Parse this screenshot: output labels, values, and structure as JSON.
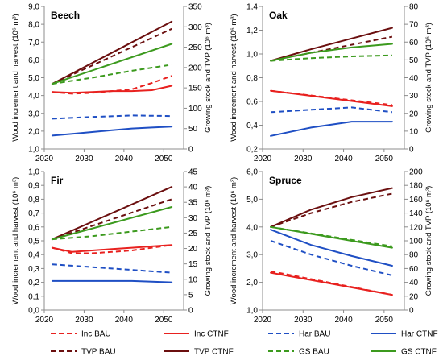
{
  "chart_data": [
    {
      "type": "line",
      "title": "Beech",
      "xlabel": "",
      "ylabel_left": "Wood increment and harvest (10⁶ m³)",
      "ylabel_right": "Growing stock and TVP (10⁶ m³)",
      "xlim": [
        2020,
        2055
      ],
      "x_ticks": [
        "2020",
        "2030",
        "2040",
        "2050"
      ],
      "ylim_left": [
        1.0,
        9.0
      ],
      "y_ticks_left": [
        "1,0",
        "2,0",
        "3,0",
        "4,0",
        "5,0",
        "6,0",
        "7,0",
        "8,0",
        "9,0"
      ],
      "ylim_right": [
        0,
        350
      ],
      "y_ticks_right": [
        "0",
        "50",
        "100",
        "150",
        "200",
        "250",
        "300",
        "350"
      ],
      "series": [
        {
          "name": "Inc BAU",
          "axis": "left",
          "x": [
            2022,
            2027,
            2032,
            2037,
            2042,
            2047,
            2052
          ],
          "values": [
            4.2,
            4.1,
            4.15,
            4.25,
            4.35,
            4.7,
            5.1
          ]
        },
        {
          "name": "Inc CTNF",
          "axis": "left",
          "x": [
            2022,
            2027,
            2032,
            2037,
            2042,
            2047,
            2052
          ],
          "values": [
            4.2,
            4.15,
            4.2,
            4.25,
            4.25,
            4.3,
            4.55
          ]
        },
        {
          "name": "Har BAU",
          "axis": "left",
          "x": [
            2022,
            2032,
            2042,
            2052
          ],
          "values": [
            2.7,
            2.8,
            2.88,
            2.85
          ]
        },
        {
          "name": "Har CTNF",
          "axis": "left",
          "x": [
            2022,
            2027,
            2032,
            2037,
            2042,
            2047,
            2052
          ],
          "values": [
            1.75,
            1.85,
            1.95,
            2.05,
            2.15,
            2.2,
            2.25
          ]
        },
        {
          "name": "TVP BAU",
          "axis": "right",
          "x": [
            2022,
            2052
          ],
          "values": [
            160,
            295
          ]
        },
        {
          "name": "TVP CTNF",
          "axis": "right",
          "x": [
            2022,
            2052
          ],
          "values": [
            160,
            313
          ]
        },
        {
          "name": "GS BAU",
          "axis": "right",
          "x": [
            2022,
            2032,
            2042,
            2052
          ],
          "values": [
            160,
            175,
            192,
            207
          ]
        },
        {
          "name": "GS CTNF",
          "axis": "right",
          "x": [
            2022,
            2052
          ],
          "values": [
            160,
            258
          ]
        }
      ]
    },
    {
      "type": "line",
      "title": "Oak",
      "xlabel": "",
      "ylabel_left": "Wood increment and harvest (10⁶ m³)",
      "ylabel_right": "Growing stock and TVP (10⁶ m³)",
      "xlim": [
        2020,
        2055
      ],
      "x_ticks": [
        "2020",
        "2030",
        "2040",
        "2050"
      ],
      "ylim_left": [
        0.2,
        1.4
      ],
      "y_ticks_left": [
        "0,2",
        "0,4",
        "0,6",
        "0,8",
        "1,0",
        "1,2",
        "1,4"
      ],
      "ylim_right": [
        0,
        80
      ],
      "y_ticks_right": [
        "0",
        "10",
        "20",
        "30",
        "40",
        "50",
        "60",
        "70",
        "80"
      ],
      "series": [
        {
          "name": "Inc BAU",
          "axis": "left",
          "x": [
            2022,
            2052
          ],
          "values": [
            0.69,
            0.57
          ]
        },
        {
          "name": "Inc CTNF",
          "axis": "left",
          "x": [
            2022,
            2052
          ],
          "values": [
            0.69,
            0.56
          ]
        },
        {
          "name": "Har BAU",
          "axis": "left",
          "x": [
            2022,
            2032,
            2042,
            2052
          ],
          "values": [
            0.51,
            0.53,
            0.55,
            0.51
          ]
        },
        {
          "name": "Har CTNF",
          "axis": "left",
          "x": [
            2022,
            2032,
            2042,
            2052
          ],
          "values": [
            0.31,
            0.38,
            0.43,
            0.43
          ]
        },
        {
          "name": "TVP BAU",
          "axis": "right",
          "x": [
            2022,
            2052
          ],
          "values": [
            49.5,
            63
          ]
        },
        {
          "name": "TVP CTNF",
          "axis": "right",
          "x": [
            2022,
            2032,
            2042,
            2052
          ],
          "values": [
            49.5,
            56,
            62,
            68
          ]
        },
        {
          "name": "GS BAU",
          "axis": "right",
          "x": [
            2022,
            2032,
            2042,
            2052
          ],
          "values": [
            49.5,
            51,
            52,
            52.5
          ]
        },
        {
          "name": "GS CTNF",
          "axis": "right",
          "x": [
            2022,
            2032,
            2042,
            2052
          ],
          "values": [
            49.5,
            54,
            57,
            59
          ]
        }
      ]
    },
    {
      "type": "line",
      "title": "Fir",
      "xlabel": "",
      "ylabel_left": "Wood increment and harvest (10⁶ m³)",
      "ylabel_right": "Growing stock and TVP (10⁶ m³)",
      "xlim": [
        2020,
        2055
      ],
      "x_ticks": [
        "2020",
        "2030",
        "2040",
        "2050"
      ],
      "ylim_left": [
        0.0,
        1.0
      ],
      "y_ticks_left": [
        "0,0",
        "0,1",
        "0,2",
        "0,3",
        "0,4",
        "0,5",
        "0,6",
        "0,7",
        "0,8",
        "0,9",
        "1,0"
      ],
      "ylim_right": [
        0,
        45
      ],
      "y_ticks_right": [
        "0",
        "5",
        "10",
        "15",
        "20",
        "25",
        "30",
        "35",
        "40",
        "45"
      ],
      "series": [
        {
          "name": "Inc BAU",
          "axis": "left",
          "x": [
            2022,
            2027,
            2032,
            2037,
            2042,
            2047,
            2052
          ],
          "values": [
            0.45,
            0.41,
            0.41,
            0.42,
            0.43,
            0.45,
            0.47
          ]
        },
        {
          "name": "Inc CTNF",
          "axis": "left",
          "x": [
            2022,
            2027,
            2032,
            2037,
            2042,
            2047,
            2052
          ],
          "values": [
            0.45,
            0.42,
            0.43,
            0.44,
            0.45,
            0.46,
            0.47
          ]
        },
        {
          "name": "Har BAU",
          "axis": "left",
          "x": [
            2022,
            2052
          ],
          "values": [
            0.33,
            0.27
          ]
        },
        {
          "name": "Har CTNF",
          "axis": "left",
          "x": [
            2022,
            2042,
            2052
          ],
          "values": [
            0.21,
            0.21,
            0.2
          ]
        },
        {
          "name": "TVP BAU",
          "axis": "right",
          "x": [
            2022,
            2052
          ],
          "values": [
            23,
            36
          ]
        },
        {
          "name": "TVP CTNF",
          "axis": "right",
          "x": [
            2022,
            2052
          ],
          "values": [
            23,
            40
          ]
        },
        {
          "name": "GS BAU",
          "axis": "right",
          "x": [
            2022,
            2032,
            2042,
            2052
          ],
          "values": [
            23,
            24,
            25.5,
            27
          ]
        },
        {
          "name": "GS CTNF",
          "axis": "right",
          "x": [
            2022,
            2052
          ],
          "values": [
            23,
            33.5
          ]
        }
      ]
    },
    {
      "type": "line",
      "title": "Spruce",
      "xlabel": "",
      "ylabel_left": "Wood increment and harvest (10⁶ m³)",
      "ylabel_right": "Growing stock and TVP (10⁶ m³)",
      "xlim": [
        2020,
        2055
      ],
      "x_ticks": [
        "2020",
        "2030",
        "2040",
        "2050"
      ],
      "ylim_left": [
        1.0,
        6.0
      ],
      "y_ticks_left": [
        "1,0",
        "2,0",
        "3,0",
        "4,0",
        "5,0",
        "6,0"
      ],
      "ylim_right": [
        0,
        200
      ],
      "y_ticks_right": [
        "0",
        "20",
        "40",
        "60",
        "80",
        "100",
        "120",
        "140",
        "160",
        "180",
        "200"
      ],
      "series": [
        {
          "name": "Inc BAU",
          "axis": "left",
          "x": [
            2022,
            2052
          ],
          "values": [
            2.4,
            1.55
          ]
        },
        {
          "name": "Inc CTNF",
          "axis": "left",
          "x": [
            2022,
            2052
          ],
          "values": [
            2.35,
            1.55
          ]
        },
        {
          "name": "Har BAU",
          "axis": "left",
          "x": [
            2022,
            2032,
            2042,
            2052
          ],
          "values": [
            3.5,
            3.0,
            2.6,
            2.25
          ]
        },
        {
          "name": "Har CTNF",
          "axis": "left",
          "x": [
            2022,
            2032,
            2042,
            2052
          ],
          "values": [
            3.9,
            3.35,
            2.95,
            2.6
          ]
        },
        {
          "name": "TVP BAU",
          "axis": "right",
          "x": [
            2022,
            2032,
            2042,
            2052
          ],
          "values": [
            120,
            140,
            156,
            168
          ]
        },
        {
          "name": "TVP CTNF",
          "axis": "right",
          "x": [
            2022,
            2032,
            2042,
            2052
          ],
          "values": [
            120,
            145,
            163,
            176
          ]
        },
        {
          "name": "GS BAU",
          "axis": "right",
          "x": [
            2022,
            2052
          ],
          "values": [
            120,
            92
          ]
        },
        {
          "name": "GS CTNF",
          "axis": "right",
          "x": [
            2022,
            2052
          ],
          "values": [
            120,
            90
          ]
        }
      ]
    }
  ],
  "legend": {
    "placement": "bottom",
    "items": [
      {
        "label": "Inc BAU",
        "color": "#e8211f",
        "dashed": true
      },
      {
        "label": "Inc CTNF",
        "color": "#e8211f",
        "dashed": false
      },
      {
        "label": "Har BAU",
        "color": "#1f4fc4",
        "dashed": true
      },
      {
        "label": "Har CTNF",
        "color": "#1f4fc4",
        "dashed": false
      },
      {
        "label": "TVP BAU",
        "color": "#6b0f0f",
        "dashed": true
      },
      {
        "label": "TVP CTNF",
        "color": "#6b0f0f",
        "dashed": false
      },
      {
        "label": "GS BAU",
        "color": "#3c9a1e",
        "dashed": true
      },
      {
        "label": "GS CTNF",
        "color": "#3c9a1e",
        "dashed": false
      }
    ]
  },
  "series_colors": {
    "Inc": "#e8211f",
    "Har": "#1f4fc4",
    "TVP": "#6b0f0f",
    "GS": "#3c9a1e"
  }
}
